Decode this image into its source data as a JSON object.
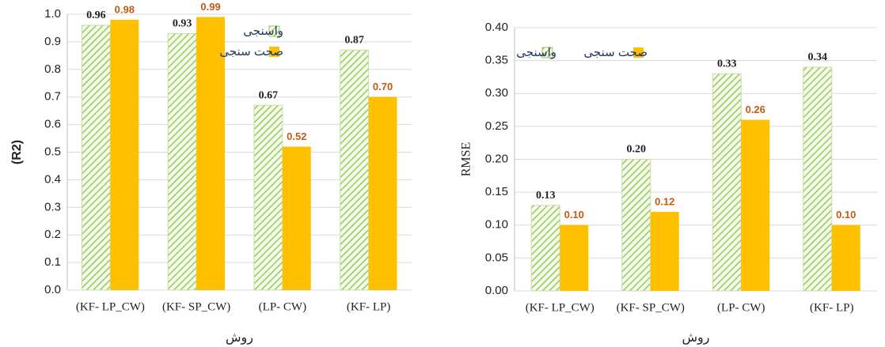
{
  "chart_data": [
    {
      "type": "bar",
      "y_label": "(R2)",
      "x_label": "روش",
      "categories": [
        "(KF- LP_CW)",
        "(KF- SP_CW)",
        "(LP- CW)",
        "(KF- LP)"
      ],
      "series": [
        {
          "name": "واسنجی",
          "color": "#9bc85a",
          "pattern": "hatch",
          "values": [
            0.96,
            0.93,
            0.67,
            0.87
          ],
          "value_labels": [
            "0.96",
            "0.93",
            "0.67",
            "0.87"
          ]
        },
        {
          "name": "صحت سنجی",
          "color": "#ffc000",
          "values": [
            0.98,
            0.99,
            0.52,
            0.7
          ],
          "value_labels": [
            "0.98",
            "0.99",
            "0.52",
            "0.70"
          ]
        }
      ],
      "ylim": [
        0,
        1.0
      ],
      "yticks": [
        {
          "value": 0,
          "label": "0.0"
        },
        0.1,
        0.2,
        0.3,
        0.4,
        0.5,
        0.6,
        0.7,
        0.8,
        0.9,
        {
          "value": 1.0,
          "label": "1.0"
        }
      ],
      "grid": true,
      "legend": "upper right"
    },
    {
      "type": "bar",
      "y_label": "RMSE",
      "x_label": "روش",
      "categories": [
        "(KF- LP_CW)",
        "(KF- SP_CW)",
        "(LP- CW)",
        "(KF- LP)"
      ],
      "series": [
        {
          "name": "واسنجی",
          "color": "#9bc85a",
          "pattern": "hatch",
          "values": [
            0.13,
            0.2,
            0.33,
            0.34
          ],
          "value_labels": [
            "0.13",
            "0.20",
            "0.33",
            "0.34"
          ]
        },
        {
          "name": "صحت سنجی",
          "color": "#ffc000",
          "values": [
            0.1,
            0.12,
            0.26,
            0.1
          ],
          "value_labels": [
            "0.10",
            "0.12",
            "0.26",
            "0.10"
          ]
        }
      ],
      "ylim": [
        0,
        0.4
      ],
      "yticks": [
        {
          "value": 0,
          "label": "0.00"
        },
        0.05,
        {
          "value": 0.1,
          "label": "0.10"
        },
        0.15,
        {
          "value": 0.2,
          "label": "0.20"
        },
        0.25,
        {
          "value": 0.3,
          "label": "0.30"
        },
        0.35,
        {
          "value": 0.4,
          "label": "0.40"
        }
      ],
      "grid": true,
      "legend": "upper left"
    }
  ]
}
